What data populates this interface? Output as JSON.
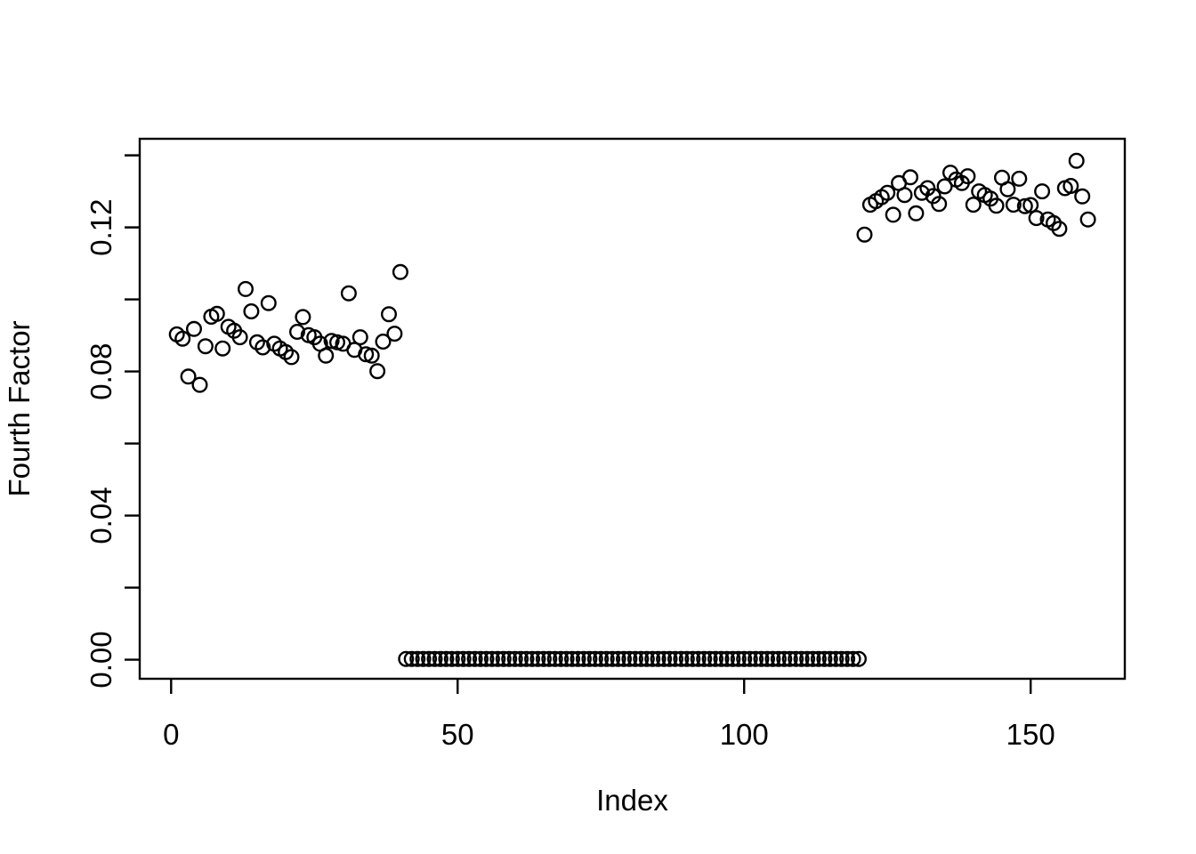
{
  "figure": {
    "background": "#ffffff",
    "foreground": "#000000"
  },
  "chart_data": {
    "type": "scatter",
    "title": "",
    "xlabel": "Index",
    "ylabel": "Fourth Factor",
    "marker": "open-circle",
    "marker_color": "#000000",
    "grid": false,
    "legend": "none",
    "xlim": [
      -5.48,
      166.43
    ],
    "ylim": [
      -0.0053,
      0.1446
    ],
    "x_ticks": [
      0,
      50,
      100,
      150
    ],
    "x_tick_labels": [
      "0",
      "50",
      "100",
      "150"
    ],
    "y_ticks": [
      0.0,
      0.02,
      0.04,
      0.06,
      0.08,
      0.1,
      0.12,
      0.14
    ],
    "y_tick_labels": [
      "0.00",
      "",
      "0.04",
      "",
      "0.08",
      "",
      "0.12",
      ""
    ],
    "x_start": 1,
    "x_step": 1,
    "values": [
      0.0903,
      0.0891,
      0.0786,
      0.0918,
      0.0763,
      0.087,
      0.0952,
      0.096,
      0.0864,
      0.0924,
      0.0913,
      0.0895,
      0.1029,
      0.0967,
      0.0881,
      0.0867,
      0.099,
      0.0877,
      0.0864,
      0.0854,
      0.084,
      0.091,
      0.0951,
      0.0901,
      0.0895,
      0.0877,
      0.0844,
      0.0885,
      0.0881,
      0.0877,
      0.1017,
      0.086,
      0.0895,
      0.0848,
      0.0844,
      0.0801,
      0.0883,
      0.0959,
      0.0905,
      0.1076,
      0.0002,
      0.0002,
      0.0002,
      0.0002,
      0.0002,
      0.0002,
      0.0002,
      0.0002,
      0.0002,
      0.0002,
      0.0002,
      0.0002,
      0.0002,
      0.0002,
      0.0002,
      0.0002,
      0.0002,
      0.0002,
      0.0002,
      0.0002,
      0.0002,
      0.0002,
      0.0002,
      0.0002,
      0.0002,
      0.0002,
      0.0002,
      0.0002,
      0.0002,
      0.0002,
      0.0002,
      0.0002,
      0.0002,
      0.0002,
      0.0002,
      0.0002,
      0.0002,
      0.0002,
      0.0002,
      0.0002,
      0.0002,
      0.0002,
      0.0002,
      0.0002,
      0.0002,
      0.0002,
      0.0002,
      0.0002,
      0.0002,
      0.0002,
      0.0002,
      0.0002,
      0.0002,
      0.0002,
      0.0002,
      0.0002,
      0.0002,
      0.0002,
      0.0002,
      0.0002,
      0.0002,
      0.0002,
      0.0002,
      0.0002,
      0.0002,
      0.0002,
      0.0002,
      0.0002,
      0.0002,
      0.0002,
      0.0002,
      0.0002,
      0.0002,
      0.0002,
      0.0002,
      0.0002,
      0.0002,
      0.0002,
      0.0002,
      0.0002,
      0.118,
      0.1263,
      0.1273,
      0.1284,
      0.1296,
      0.1235,
      0.1323,
      0.129,
      0.1339,
      0.1239,
      0.1296,
      0.1309,
      0.1287,
      0.1265,
      0.1314,
      0.1352,
      0.1333,
      0.1323,
      0.1342,
      0.1263,
      0.13,
      0.129,
      0.128,
      0.126,
      0.1338,
      0.1306,
      0.1263,
      0.1335,
      0.1259,
      0.1262,
      0.1226,
      0.13,
      0.1222,
      0.1212,
      0.1196,
      0.1309,
      0.1315,
      0.1385,
      0.1286,
      0.1222
    ]
  }
}
